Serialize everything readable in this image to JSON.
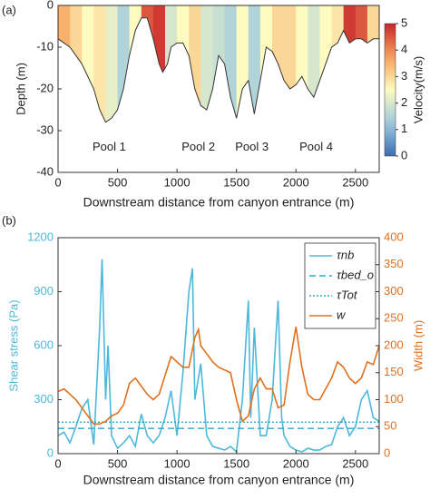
{
  "chart_data": [
    {
      "type": "heatmap",
      "panel_label": "(a)",
      "xlabel": "Downstream distance from canyon entrance (m)",
      "ylabel": "Depth (m)",
      "colorbar_label": "Velocity(m/s)",
      "xlim": [
        0,
        2700
      ],
      "xticks": [
        0,
        500,
        1000,
        1500,
        2000,
        2500
      ],
      "ylim": [
        -40,
        0
      ],
      "yticks": [
        0,
        -10,
        -20,
        -30,
        -40
      ],
      "clim": [
        0,
        5
      ],
      "cticks": [
        0,
        1,
        2,
        3,
        4,
        5
      ],
      "x": [
        0,
        100,
        200,
        300,
        350,
        400,
        450,
        500,
        550,
        600,
        650,
        700,
        750,
        800,
        850,
        880,
        920,
        950,
        1000,
        1050,
        1100,
        1150,
        1200,
        1250,
        1300,
        1350,
        1400,
        1450,
        1500,
        1550,
        1600,
        1650,
        1700,
        1750,
        1800,
        1850,
        1900,
        1950,
        2000,
        2050,
        2100,
        2150,
        2200,
        2250,
        2300,
        2350,
        2400,
        2450,
        2500,
        2550,
        2600,
        2650,
        2700
      ],
      "values": [
        -8,
        -10,
        -14,
        -20,
        -25,
        -28,
        -27,
        -25,
        -20,
        -12,
        -6,
        -3,
        -3,
        -8,
        -14,
        -16,
        -14,
        -10,
        -9,
        -9,
        -12,
        -20,
        -24,
        -25,
        -20,
        -12,
        -14,
        -22,
        -27,
        -20,
        -18,
        -26,
        -18,
        -10,
        -11,
        -14,
        -18,
        -20,
        -19,
        -17,
        -20,
        -22,
        -18,
        -14,
        -10,
        -9,
        -6,
        -9,
        -8,
        -8,
        -9,
        -8,
        -8
      ],
      "columns": {
        "x": [
          50,
          150,
          250,
          350,
          450,
          550,
          650,
          750,
          850,
          950,
          1050,
          1150,
          1250,
          1350,
          1450,
          1550,
          1650,
          1750,
          1850,
          1950,
          2050,
          2150,
          2250,
          2350,
          2450,
          2550,
          2650
        ],
        "values": [
          3.5,
          3,
          2.5,
          2.8,
          2.2,
          1.5,
          2.5,
          4.5,
          4.8,
          2,
          2.5,
          3,
          2,
          1.8,
          1.5,
          2.5,
          1.5,
          2.5,
          3,
          3,
          2.5,
          2,
          2.5,
          2.8,
          4.8,
          4.5,
          3
        ]
      },
      "annotations": [
        {
          "text": "Pool 1",
          "x": 430,
          "y": -34
        },
        {
          "text": "Pool 2",
          "x": 1180,
          "y": -34
        },
        {
          "text": "Pool 3",
          "x": 1630,
          "y": -34
        },
        {
          "text": "Pool 4",
          "x": 2170,
          "y": -34
        }
      ]
    },
    {
      "type": "line",
      "panel_label": "(b)",
      "xlabel": "Downstream distance from canyon entrance (m)",
      "ylabel": "Shear stress (Pa)",
      "y2label": "Width (m)",
      "xlim": [
        0,
        2700
      ],
      "xticks": [
        0,
        500,
        1000,
        1500,
        2000,
        2500
      ],
      "ylim": [
        0,
        1200
      ],
      "yticks": [
        0,
        300,
        600,
        900,
        1200
      ],
      "y2lim": [
        0,
        400
      ],
      "y2ticks": [
        0,
        50,
        100,
        150,
        200,
        250,
        300,
        350,
        400
      ],
      "series": [
        {
          "name": "τnb",
          "color": "#4db8dc",
          "style": "solid",
          "x": [
            0,
            50,
            100,
            150,
            200,
            250,
            300,
            350,
            370,
            400,
            420,
            450,
            500,
            550,
            600,
            650,
            700,
            750,
            800,
            850,
            900,
            950,
            1000,
            1050,
            1100,
            1130,
            1150,
            1200,
            1250,
            1300,
            1350,
            1400,
            1450,
            1500,
            1550,
            1600,
            1620,
            1650,
            1700,
            1750,
            1800,
            1850,
            1880,
            1900,
            1950,
            2000,
            2050,
            2100,
            2150,
            2200,
            2250,
            2300,
            2350,
            2400,
            2450,
            2500,
            2550,
            2600,
            2650,
            2700
          ],
          "values": [
            100,
            120,
            60,
            150,
            250,
            300,
            50,
            700,
            1080,
            300,
            600,
            100,
            30,
            60,
            100,
            40,
            220,
            100,
            60,
            100,
            200,
            350,
            100,
            450,
            900,
            1030,
            300,
            500,
            100,
            40,
            30,
            20,
            40,
            10,
            300,
            850,
            200,
            700,
            100,
            100,
            300,
            850,
            200,
            100,
            40,
            20,
            10,
            30,
            20,
            20,
            40,
            50,
            150,
            200,
            100,
            150,
            300,
            350,
            200,
            180
          ]
        },
        {
          "name": "τbed_o",
          "color": "#2aa7d4",
          "style": "dashed",
          "x": [
            0,
            2700
          ],
          "values": [
            140,
            140
          ]
        },
        {
          "name": "τTot",
          "color": "#2aa7d4",
          "style": "dotted",
          "x": [
            0,
            2700
          ],
          "values": [
            175,
            175
          ]
        },
        {
          "name": "w",
          "color": "#e0701e",
          "style": "solid",
          "axis": "y2",
          "x": [
            0,
            50,
            100,
            150,
            200,
            250,
            300,
            350,
            400,
            450,
            500,
            550,
            600,
            650,
            700,
            750,
            800,
            850,
            900,
            950,
            1000,
            1050,
            1100,
            1150,
            1180,
            1200,
            1250,
            1300,
            1350,
            1400,
            1450,
            1500,
            1550,
            1600,
            1650,
            1700,
            1750,
            1800,
            1850,
            1900,
            1950,
            2000,
            2050,
            2100,
            2150,
            2200,
            2250,
            2300,
            2350,
            2400,
            2450,
            2500,
            2550,
            2600,
            2650,
            2700
          ],
          "values": [
            115,
            120,
            110,
            100,
            85,
            70,
            55,
            55,
            60,
            70,
            75,
            90,
            130,
            140,
            125,
            110,
            100,
            110,
            145,
            180,
            170,
            160,
            160,
            215,
            230,
            200,
            185,
            170,
            160,
            155,
            150,
            100,
            60,
            70,
            120,
            140,
            120,
            120,
            85,
            90,
            170,
            235,
            160,
            110,
            100,
            100,
            120,
            140,
            170,
            160,
            140,
            130,
            140,
            170,
            165,
            200
          ]
        }
      ]
    }
  ]
}
